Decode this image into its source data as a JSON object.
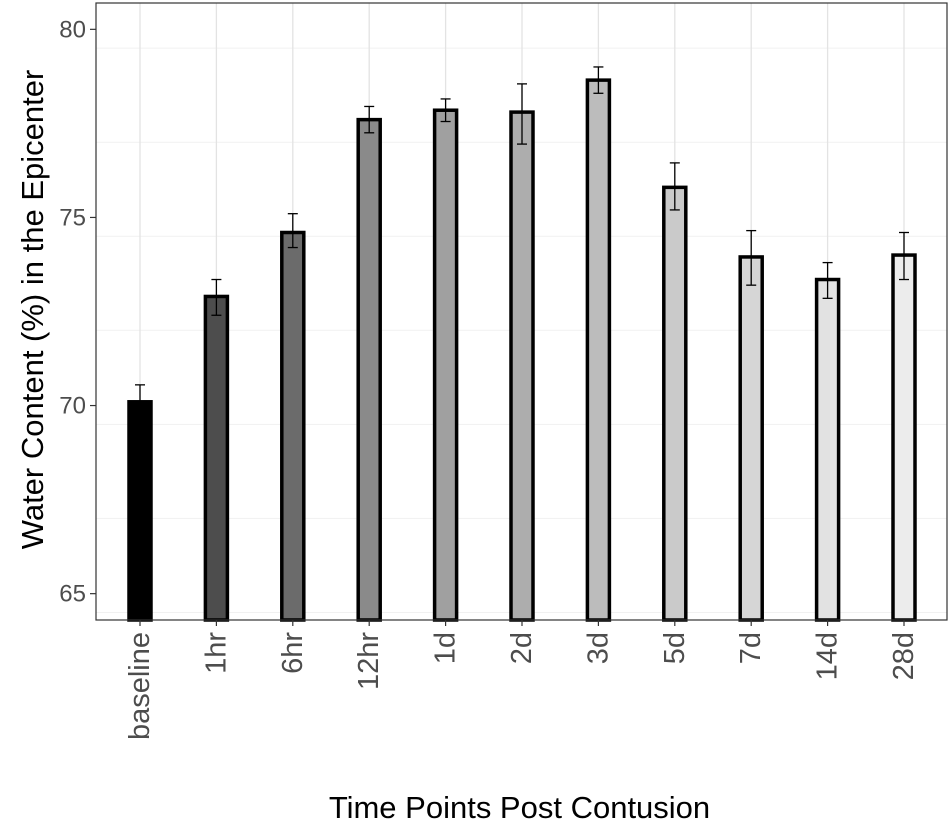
{
  "chart_data": {
    "type": "bar",
    "title": "",
    "xlabel": "Time Points Post Contusion",
    "ylabel": "Water Content (%) in the Epicenter",
    "categories": [
      "baseline",
      "1hr",
      "6hr",
      "12hr",
      "1d",
      "2d",
      "3d",
      "5d",
      "7d",
      "14d",
      "28d"
    ],
    "values": [
      70.1,
      72.9,
      74.6,
      77.6,
      77.85,
      77.8,
      78.65,
      75.8,
      73.95,
      73.35,
      74.0
    ],
    "error_low": [
      70.1,
      72.4,
      74.2,
      77.25,
      77.55,
      76.95,
      78.3,
      75.2,
      73.2,
      72.85,
      73.35
    ],
    "error_high": [
      70.55,
      73.35,
      75.1,
      77.95,
      78.15,
      78.55,
      79.0,
      76.45,
      74.65,
      73.8,
      74.6
    ],
    "bar_colors": [
      "#000000",
      "#4d4d4d",
      "#6b6b6b",
      "#8a8a8a",
      "#a0a0a0",
      "#adadad",
      "#bcbcbc",
      "#cacaca",
      "#d6d6d6",
      "#e2e2e2",
      "#ececec"
    ],
    "bar_outline_color": "#000000",
    "ylim": [
      64.3,
      80.7
    ],
    "y_ticks": [
      65,
      70,
      75,
      80
    ],
    "grid": true,
    "legend": "none"
  }
}
